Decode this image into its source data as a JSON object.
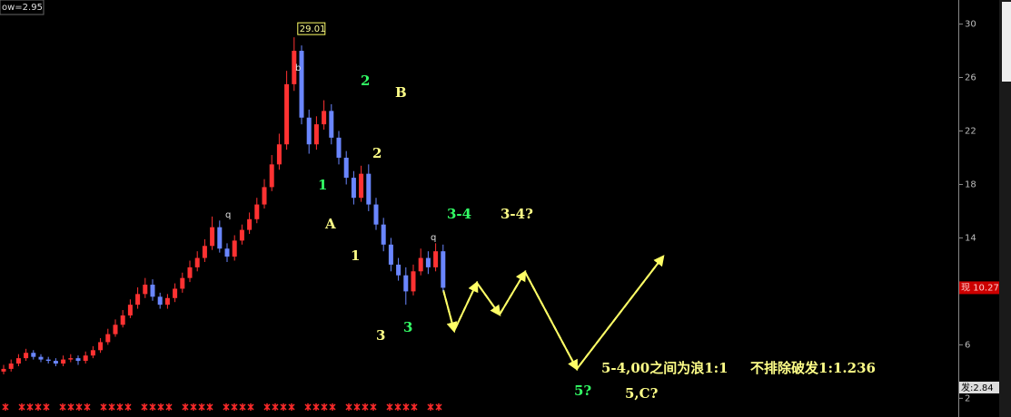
{
  "chart_data": {
    "type": "candlestick",
    "indicator_label": "ow=2.95",
    "price_tag": "现 10.27",
    "bottom_tag": "发:2.84",
    "up_color": "#ff3232",
    "down_color": "#6a86ff",
    "ylim": [
      0.6,
      31.8
    ],
    "yticks": [
      2,
      6,
      14,
      18,
      22,
      26,
      30
    ],
    "open": [
      4.0,
      4.2,
      4.6,
      5.0,
      5.4,
      5.1,
      4.9,
      4.8,
      4.6,
      4.9,
      5.0,
      4.8,
      5.2,
      5.6,
      6.2,
      6.8,
      7.5,
      8.2,
      9.0,
      9.8,
      10.5,
      9.6,
      9.0,
      9.5,
      10.2,
      11.0,
      11.8,
      12.5,
      13.4,
      14.8,
      13.2,
      12.6,
      13.8,
      14.6,
      15.4,
      16.5,
      17.8,
      19.5,
      21.0,
      25.5,
      28.0,
      23.0,
      21.0,
      22.5,
      23.5,
      21.5,
      20.0,
      18.5,
      17.0,
      18.8,
      16.5,
      15.0,
      13.5,
      12.0,
      11.2,
      10.0,
      11.5,
      12.5,
      11.8,
      13.0
    ],
    "high": [
      4.5,
      4.9,
      5.3,
      5.7,
      5.6,
      5.3,
      5.1,
      5.0,
      5.2,
      5.3,
      5.2,
      5.5,
      5.9,
      6.5,
      7.2,
      7.9,
      8.6,
      9.4,
      10.3,
      11.0,
      10.9,
      9.9,
      9.8,
      10.6,
      11.4,
      12.3,
      13.0,
      13.9,
      15.6,
      15.3,
      13.6,
      14.2,
      15.0,
      15.9,
      17.0,
      18.4,
      20.2,
      21.8,
      26.5,
      29.01,
      28.4,
      23.6,
      23.1,
      24.3,
      24.0,
      22.0,
      20.5,
      19.0,
      19.4,
      19.5,
      17.0,
      15.5,
      14.0,
      12.5,
      11.8,
      12.0,
      13.2,
      13.0,
      13.6,
      13.5
    ],
    "low": [
      3.8,
      4.0,
      4.4,
      4.8,
      4.9,
      4.7,
      4.6,
      4.4,
      4.4,
      4.7,
      4.5,
      4.6,
      5.0,
      5.4,
      6.0,
      6.6,
      7.3,
      8.0,
      8.7,
      9.5,
      9.3,
      8.7,
      8.7,
      9.2,
      9.9,
      10.7,
      11.5,
      12.2,
      13.1,
      12.9,
      12.2,
      12.3,
      13.5,
      14.3,
      15.1,
      16.2,
      17.5,
      19.1,
      20.6,
      25.0,
      22.5,
      20.3,
      20.6,
      22.1,
      21.0,
      19.5,
      18.0,
      16.5,
      16.7,
      16.0,
      14.6,
      13.0,
      11.5,
      10.8,
      9.0,
      9.7,
      11.2,
      11.3,
      11.5,
      10.0
    ],
    "close": [
      4.2,
      4.6,
      5.0,
      5.4,
      5.1,
      4.9,
      4.8,
      4.6,
      4.9,
      5.0,
      4.8,
      5.2,
      5.6,
      6.2,
      6.8,
      7.5,
      8.2,
      9.0,
      9.8,
      10.5,
      9.6,
      9.0,
      9.5,
      10.2,
      11.0,
      11.8,
      12.5,
      13.4,
      14.8,
      13.2,
      12.6,
      13.8,
      14.6,
      15.4,
      16.5,
      17.8,
      19.5,
      21.0,
      25.5,
      28.0,
      23.0,
      21.0,
      22.5,
      23.5,
      21.5,
      20.0,
      18.5,
      17.0,
      18.8,
      16.5,
      15.0,
      13.5,
      12.0,
      11.2,
      10.0,
      11.5,
      12.5,
      11.8,
      13.0,
      10.27
    ],
    "annotations": [
      "b",
      "2",
      "B",
      "2",
      "1",
      "A",
      "1",
      "3",
      "3",
      "3-4",
      "3-4?",
      "5?",
      "5,C?",
      "5-4,00之间为浪1:1",
      "不排除破发1:1.236",
      "q",
      "q"
    ]
  }
}
